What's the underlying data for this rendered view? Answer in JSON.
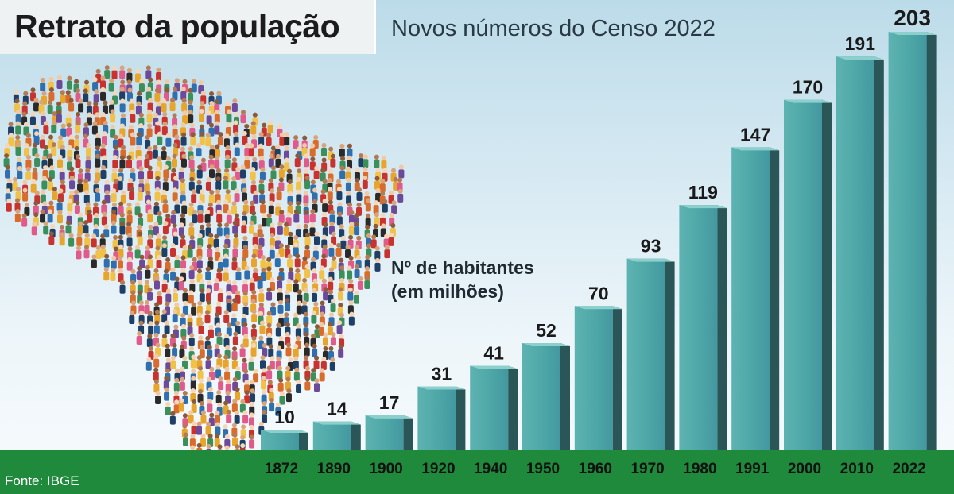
{
  "header": {
    "title": "Retrato da população",
    "subtitle": "Novos números do Censo 2022"
  },
  "unit_label": {
    "line1": "Nº de habitantes",
    "line2": "(em milhões)"
  },
  "source": "Fonte: IBGE",
  "colors": {
    "bar_front": "#4fa8a7",
    "bar_side": "#2b5658",
    "bar_top": "#8ccfcc",
    "footer": "#1f8a3b",
    "crowd_palette": [
      "#2f6fae",
      "#c8332f",
      "#e8a52b",
      "#2a2a2a",
      "#3b8f5a",
      "#e05a8a",
      "#6b4a9a",
      "#f0c24a",
      "#1e3f66",
      "#d96b2b"
    ]
  },
  "chart_data": {
    "type": "bar",
    "categories": [
      "1872",
      "1890",
      "1900",
      "1920",
      "1940",
      "1950",
      "1960",
      "1970",
      "1980",
      "1991",
      "2000",
      "2010",
      "2022"
    ],
    "values": [
      10,
      14,
      17,
      31,
      41,
      52,
      70,
      93,
      119,
      147,
      170,
      191,
      203
    ],
    "title": "Retrato da população",
    "subtitle": "Novos números do Censo 2022",
    "ylabel": "Nº de habitantes (em milhões)",
    "xlabel": "",
    "ylim": [
      0,
      203
    ],
    "grid": false,
    "legend": "none"
  }
}
